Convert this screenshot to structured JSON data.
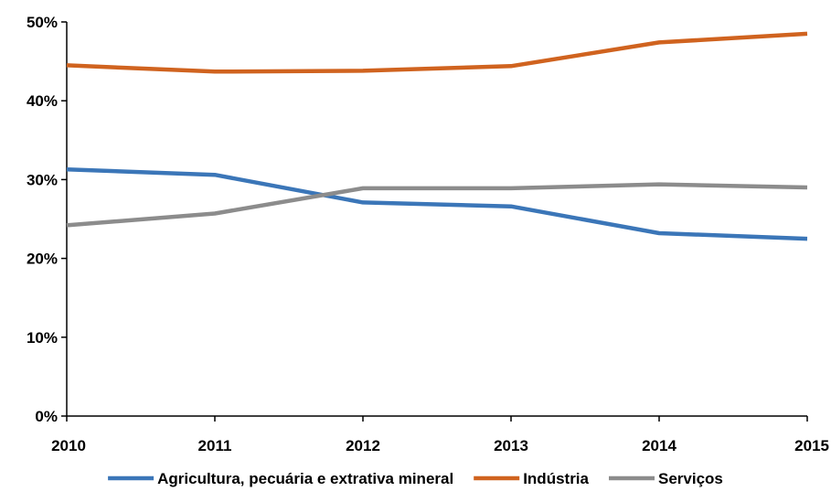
{
  "chart_data": {
    "type": "line",
    "title": "",
    "xlabel": "",
    "ylabel": "",
    "x": [
      "2010",
      "2011",
      "2012",
      "2013",
      "2014",
      "2015"
    ],
    "y_ticks": [
      "0%",
      "10%",
      "20%",
      "30%",
      "40%",
      "50%"
    ],
    "ylim": [
      0,
      50
    ],
    "y_unit": "%",
    "grid": false,
    "legend_position": "bottom",
    "series": [
      {
        "name": "Agricultura, pecuária e extrativa mineral",
        "color": "#3B76B8",
        "values": [
          31.3,
          30.6,
          27.1,
          26.6,
          23.2,
          22.5
        ]
      },
      {
        "name": "Indústria",
        "color": "#D0631F",
        "values": [
          44.5,
          43.7,
          43.8,
          44.4,
          47.4,
          48.5
        ]
      },
      {
        "name": "Serviços",
        "color": "#8C8C8C",
        "values": [
          24.2,
          25.7,
          28.9,
          28.9,
          29.4,
          29.0
        ]
      }
    ]
  }
}
